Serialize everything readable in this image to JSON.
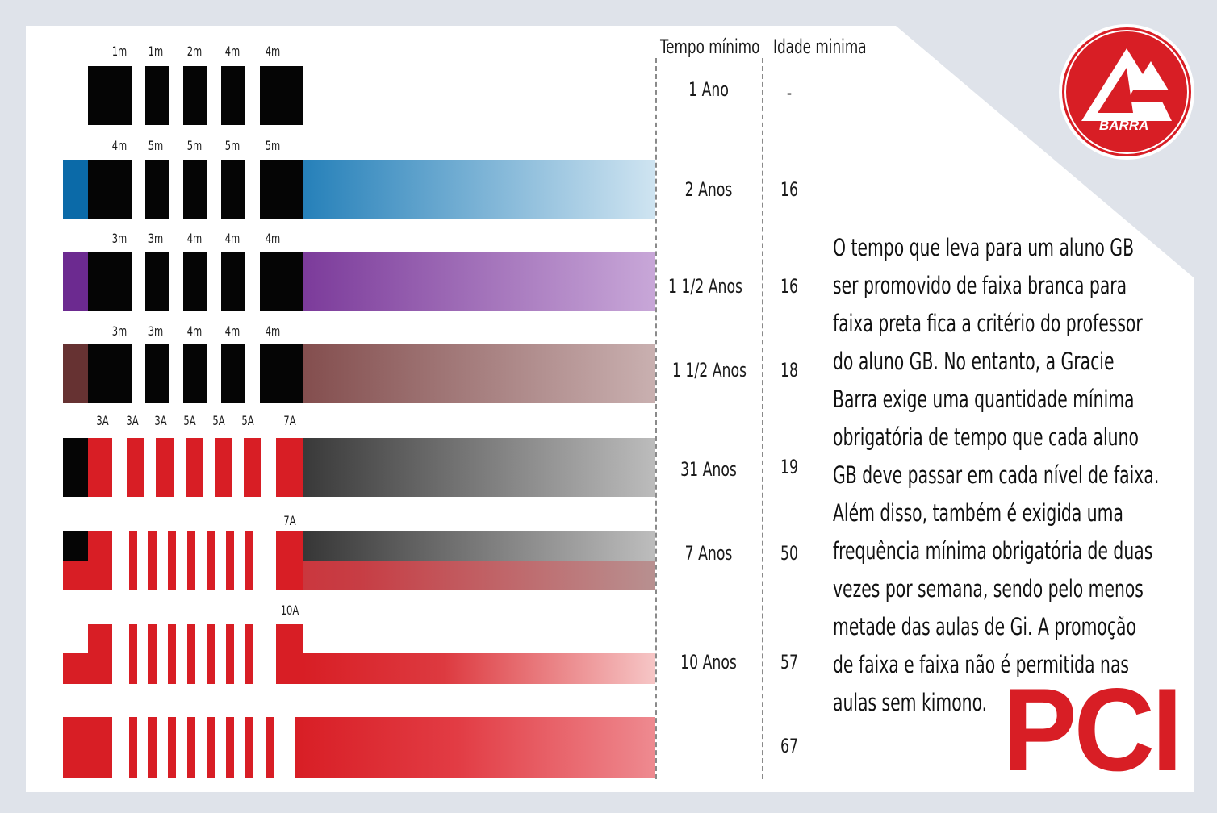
{
  "headers": {
    "tempo": "Tempo mínimo",
    "idade": "Idade minima"
  },
  "belts": [
    {
      "name": "white",
      "stripe_labels": [
        "1m",
        "1m",
        "2m",
        "4m",
        "4m"
      ],
      "tempo": "1 Ano",
      "idade": "-"
    },
    {
      "name": "blue",
      "stripe_labels": [
        "4m",
        "5m",
        "5m",
        "5m",
        "5m"
      ],
      "tempo": "2 Anos",
      "idade": "16",
      "color": "#0b6aa8"
    },
    {
      "name": "purple",
      "stripe_labels": [
        "3m",
        "3m",
        "4m",
        "4m",
        "4m"
      ],
      "tempo": "1 1/2 Anos",
      "idade": "16",
      "color": "#6c2a90"
    },
    {
      "name": "brown",
      "stripe_labels": [
        "3m",
        "3m",
        "4m",
        "4m",
        "4m"
      ],
      "tempo": "1 1/2 Anos",
      "idade": "18",
      "color": "#663232"
    },
    {
      "name": "black",
      "stripe_labels": [
        "3A",
        "3A",
        "3A",
        "5A",
        "5A",
        "5A",
        "7A"
      ],
      "tempo": "31 Anos",
      "idade": "19",
      "color": "#0a0a0a"
    },
    {
      "name": "red-black",
      "stripe_labels": [
        "7A"
      ],
      "tempo": "7 Anos",
      "idade": "50"
    },
    {
      "name": "red-white",
      "stripe_labels": [
        "10A"
      ],
      "tempo": "10 Anos",
      "idade": "57"
    },
    {
      "name": "red",
      "stripe_labels": [],
      "tempo": "",
      "idade": "67",
      "color": "#d81e25"
    }
  ],
  "paragraph": [
    "O tempo que leva para um aluno GB",
    "ser promovido de faixa branca para",
    "faixa preta fica a critério do professor",
    "do aluno GB. No entanto, a Gracie",
    "Barra exige uma quantidade mínima",
    "obrigatória de tempo que cada aluno",
    "GB deve passar em cada nível de faixa.",
    "Além disso, também é exigida uma",
    "frequência mínima obrigatória de duas",
    "vezes por semana, sendo pelo menos",
    "metade das aulas de Gi. A promoção",
    "de faixa e faixa não é permitida nas",
    "aulas sem kimono."
  ],
  "logo": {
    "text": "BARRA",
    "color": "#d81e25"
  },
  "brand_text": "PCI"
}
